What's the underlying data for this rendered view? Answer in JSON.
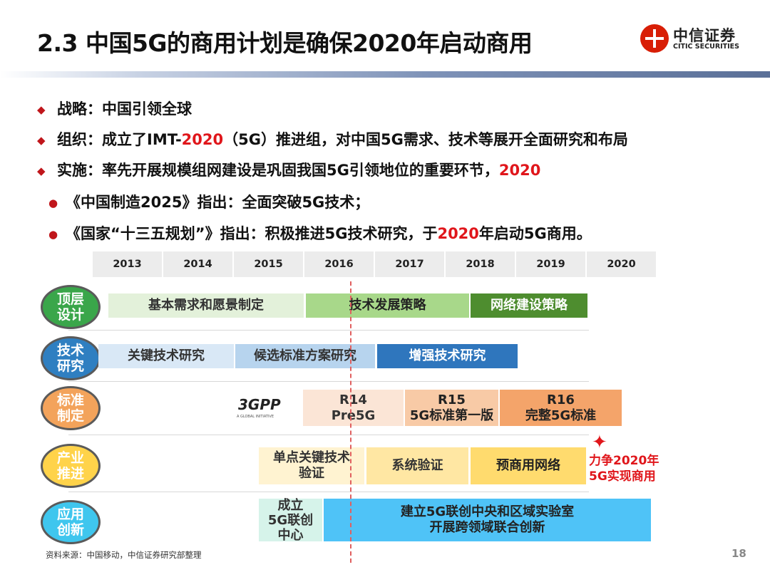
{
  "title": "2.3 中国5G的商用计划是确保2020年启动商用",
  "logo": {
    "cn": "中信证券",
    "en": "CITIC SECURITIES"
  },
  "bullets": [
    {
      "text": "战略：中国引领全球",
      "red": ""
    },
    {
      "pre": "组织：成立了IMT-",
      "red": "2020",
      "post": "（5G）推进组，对中国5G需求、技术等展开全面研究和布局"
    },
    {
      "pre": "实施：率先开展规模组网建设是巩固我国5G引领地位的重要环节，",
      "red": "2020",
      "post": ""
    }
  ],
  "subbullets": [
    {
      "pre": "《中国制造2025》指出：全面突破5G技术；",
      "red": "",
      "post": ""
    },
    {
      "pre": "《国家“十三五规划”》指出：积极推进5G技术研究，于",
      "red": "2020",
      "post": "年启动5G商用。"
    }
  ],
  "years": [
    "2013",
    "2014",
    "2015",
    "2016",
    "2017",
    "2018",
    "2019",
    "2020"
  ],
  "rows": [
    {
      "label_1": "顶层",
      "label_2": "设计",
      "color": "#3aa64a"
    },
    {
      "label_1": "技术",
      "label_2": "研究",
      "color": "#2f7fc1"
    },
    {
      "label_1": "标准",
      "label_2": "制定",
      "color": "#f3a35b"
    },
    {
      "label_1": "产业",
      "label_2": "推进",
      "color": "#ffd34a"
    },
    {
      "label_1": "应用",
      "label_2": "创新",
      "color": "#3fc6ee"
    }
  ],
  "boxes": {
    "b1": "基本需求和愿景制定",
    "b2": "技术发展策略",
    "b3": "网络建设策略",
    "b4": "关键技术研究",
    "b5": "候选标准方案研究",
    "b6": "增强技术研究",
    "b7_1": "R14",
    "b7_2": "Pre5G",
    "b8_1": "R15",
    "b8_2": "5G标准第一版",
    "b9_1": "R16",
    "b9_2": "完整5G标准",
    "b10_1": "单点关键技术",
    "b10_2": "验证",
    "b11": "系统验证",
    "b12": "预商用网络",
    "b13_1": "成立",
    "b13_2": "5G联创",
    "b13_3": "中心",
    "b14_1": "建立5G联创中央和区域实验室",
    "b14_2": "开展跨领域联合创新"
  },
  "goal": {
    "line1": "力争2020年",
    "line2": "5G实现商用"
  },
  "threegpp": {
    "mark": "3GPP",
    "sub": "A GLOBAL INITIATIVE"
  },
  "source": "资料来源：中国移动，中信证券研究部整理",
  "page": "18"
}
